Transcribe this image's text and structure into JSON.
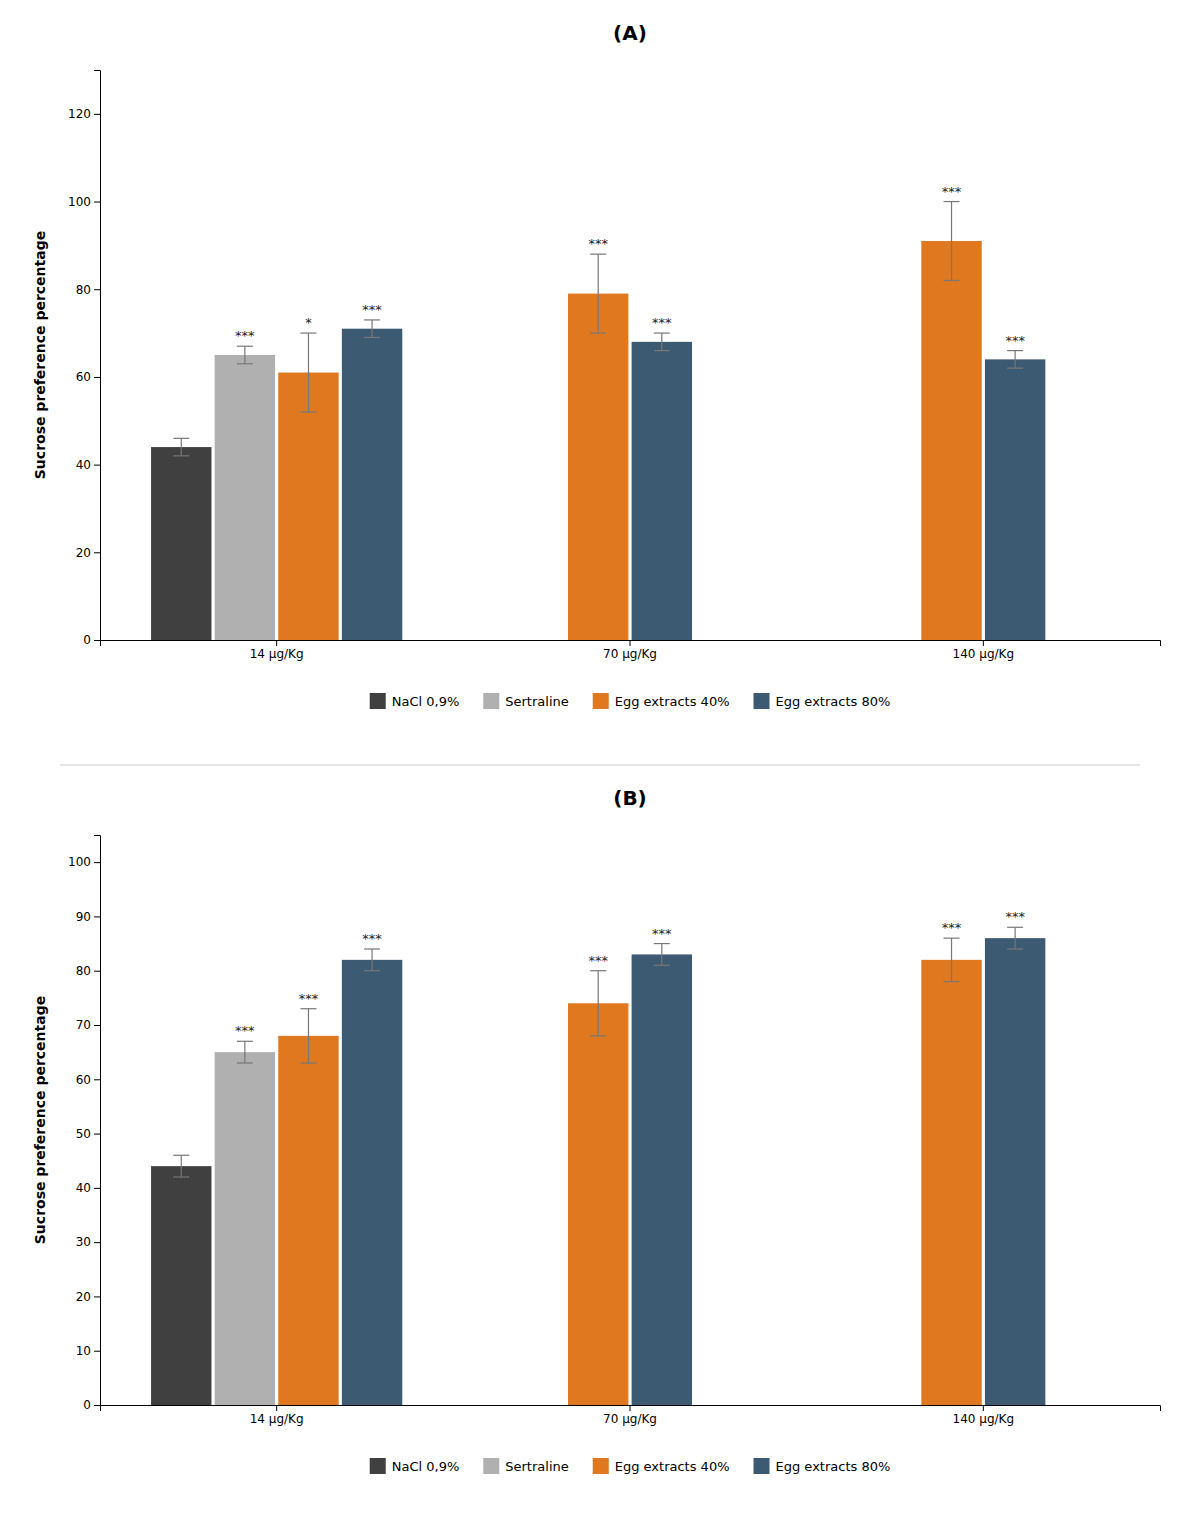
{
  "chart_data": [
    {
      "type": "bar",
      "title": "(A)",
      "categories": [
        "14 μg/Kg",
        "70 μg/Kg",
        "140 μg/Kg"
      ],
      "series": [
        {
          "name": "NaCl 0,9%",
          "color": "#404040",
          "values": [
            44,
            null,
            null
          ],
          "errors": [
            2,
            null,
            null
          ],
          "annotations": [
            null,
            null,
            null
          ]
        },
        {
          "name": "Sertraline",
          "color": "#b0b0b0",
          "values": [
            65,
            null,
            null
          ],
          "errors": [
            2,
            null,
            null
          ],
          "annotations": [
            "***",
            null,
            null
          ]
        },
        {
          "name": "Egg extracts 40%",
          "color": "#e07820",
          "values": [
            61,
            79,
            91
          ],
          "errors": [
            9,
            9,
            9
          ],
          "annotations": [
            "*",
            "***",
            "***"
          ]
        },
        {
          "name": "Egg extracts 80%",
          "color": "#3d5a73",
          "values": [
            71,
            68,
            64
          ],
          "errors": [
            2,
            2,
            2
          ],
          "annotations": [
            "***",
            "***",
            "***"
          ]
        }
      ],
      "ylabel": "Sucrose preference percentage",
      "ylim": [
        0,
        130
      ],
      "yticks": [
        0,
        20,
        40,
        60,
        80,
        100,
        120
      ],
      "grid": false,
      "legend": "bottom"
    },
    {
      "type": "bar",
      "title": "(B)",
      "categories": [
        "14 μg/Kg",
        "70 μg/Kg",
        "140 μg/Kg"
      ],
      "series": [
        {
          "name": "NaCl 0,9%",
          "color": "#404040",
          "values": [
            44,
            null,
            null
          ],
          "errors": [
            2,
            null,
            null
          ],
          "annotations": [
            null,
            null,
            null
          ]
        },
        {
          "name": "Sertraline",
          "color": "#b0b0b0",
          "values": [
            65,
            null,
            null
          ],
          "errors": [
            2,
            null,
            null
          ],
          "annotations": [
            "***",
            null,
            null
          ]
        },
        {
          "name": "Egg extracts 40%",
          "color": "#e07820",
          "values": [
            68,
            74,
            82
          ],
          "errors": [
            5,
            6,
            4
          ],
          "annotations": [
            "***",
            "***",
            "***"
          ]
        },
        {
          "name": "Egg extracts 80%",
          "color": "#3d5a73",
          "values": [
            82,
            83,
            86
          ],
          "errors": [
            2,
            2,
            2
          ],
          "annotations": [
            "***",
            "***",
            "***"
          ]
        }
      ],
      "ylabel": "Sucrose preference percentage",
      "ylim": [
        0,
        105
      ],
      "yticks": [
        0,
        10,
        20,
        30,
        40,
        50,
        60,
        70,
        80,
        90,
        100
      ],
      "grid": false,
      "legend": "bottom"
    }
  ]
}
